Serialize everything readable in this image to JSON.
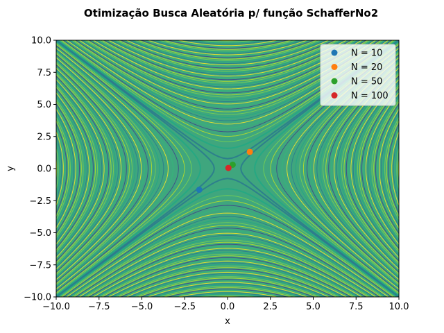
{
  "chart_data": {
    "type": "scatter",
    "title": "Otimização Busca Aleatória p/ função SchafferNo2",
    "xlabel": "x",
    "ylabel": "y",
    "xlim": [
      -10,
      10
    ],
    "ylim": [
      -10,
      10
    ],
    "xticks": [
      "−10.0",
      "−7.5",
      "−5.0",
      "−2.5",
      "0.0",
      "2.5",
      "5.0",
      "7.5",
      "10.0"
    ],
    "yticks": [
      "−10.0",
      "−7.5",
      "−5.0",
      "−2.5",
      "0.0",
      "2.5",
      "5.0",
      "7.5",
      "10.0"
    ],
    "background": "contour plot of the Schaffer No.2 function with labeled contour levels",
    "legend_position": "top-right",
    "series": [
      {
        "name": "N = 10",
        "color": "#1f77b4",
        "x": [
          -1.65
        ],
        "y": [
          -1.65
        ]
      },
      {
        "name": "N = 20",
        "color": "#ff7f0e",
        "x": [
          1.3
        ],
        "y": [
          1.3
        ]
      },
      {
        "name": "N = 50",
        "color": "#2ca02c",
        "x": [
          0.3
        ],
        "y": [
          0.3
        ]
      },
      {
        "name": "N = 100",
        "color": "#d62728",
        "x": [
          0.05
        ],
        "y": [
          0.05
        ]
      }
    ]
  }
}
